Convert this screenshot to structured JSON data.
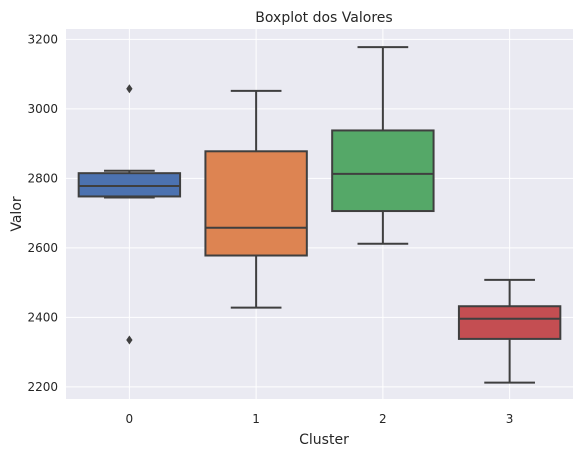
{
  "chart_data": {
    "type": "boxplot",
    "title": "Boxplot dos Valores",
    "xlabel": "Cluster",
    "ylabel": "Valor",
    "categories": [
      "0",
      "1",
      "2",
      "3"
    ],
    "ylim": [
      2165,
      3230
    ],
    "yticks": [
      2200,
      2400,
      2600,
      2800,
      3000,
      3200
    ],
    "grid": true,
    "boxes": [
      {
        "name": "0",
        "color": "#4c72b0",
        "whisker_low": 2745,
        "q1": 2748,
        "median": 2778,
        "q3": 2815,
        "whisker_high": 2822,
        "outliers": [
          3058,
          2335
        ]
      },
      {
        "name": "1",
        "color": "#dd8452",
        "whisker_low": 2428,
        "q1": 2578,
        "median": 2658,
        "q3": 2878,
        "whisker_high": 3052,
        "outliers": []
      },
      {
        "name": "2",
        "color": "#55a868",
        "whisker_low": 2612,
        "q1": 2706,
        "median": 2813,
        "q3": 2938,
        "whisker_high": 3178,
        "outliers": []
      },
      {
        "name": "3",
        "color": "#c44e52",
        "whisker_low": 2212,
        "q1": 2338,
        "median": 2396,
        "q3": 2432,
        "whisker_high": 2508,
        "outliers": []
      }
    ],
    "colors": {
      "background": "#eaeaf2",
      "grid": "#ffffff",
      "line": "#3f3f3f",
      "text": "#262626"
    }
  }
}
